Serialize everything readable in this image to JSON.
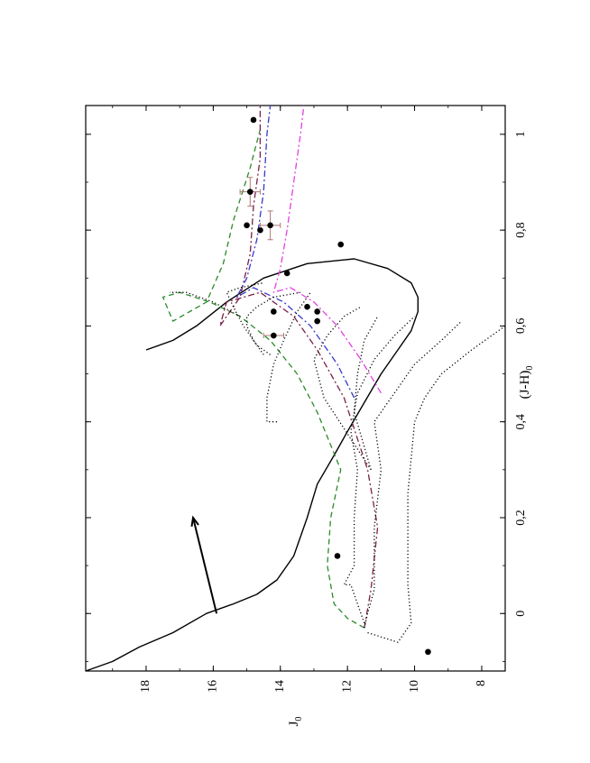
{
  "chart_data": {
    "type": "scatter",
    "orientation": "rotated-90-ccw",
    "xlabel": "(J-H)",
    "xlabel_sub": "0",
    "ylabel": "J",
    "ylabel_sub": "0",
    "xlim": [
      -0.12,
      1.06
    ],
    "ylim": [
      19.8,
      7.3
    ],
    "x_ticks": [
      0,
      0.2,
      0.4,
      0.6,
      0.8,
      1
    ],
    "x_tick_labels": [
      "0",
      "0,2",
      "0,4",
      "0,6",
      "0,8",
      "1"
    ],
    "y_ticks": [
      8,
      10,
      12,
      14,
      16,
      18
    ],
    "y_tick_labels": [
      "8",
      "10",
      "12",
      "14",
      "16",
      "18"
    ],
    "grid": false,
    "points": [
      {
        "x": -0.08,
        "y": 9.6
      },
      {
        "x": 0.12,
        "y": 12.3
      },
      {
        "x": 0.61,
        "y": 12.9
      },
      {
        "x": 0.63,
        "y": 12.9
      },
      {
        "x": 0.64,
        "y": 13.2
      },
      {
        "x": 0.71,
        "y": 13.8
      },
      {
        "x": 0.77,
        "y": 12.2
      },
      {
        "x": 0.58,
        "y": 14.2,
        "xerr": 0.0,
        "yerr": 0.3
      },
      {
        "x": 0.63,
        "y": 14.2
      },
      {
        "x": 0.8,
        "y": 14.6
      },
      {
        "x": 0.81,
        "y": 14.3,
        "xerr": 0.03,
        "yerr": 0.3
      },
      {
        "x": 0.81,
        "y": 15.0
      },
      {
        "x": 0.88,
        "y": 14.9,
        "xerr": 0.03,
        "yerr": 0.3
      },
      {
        "x": 1.03,
        "y": 14.8
      }
    ],
    "point_color": "#000000",
    "errorbar_color": "#b07878",
    "series": [
      {
        "style": "solid",
        "color": "#000000",
        "x": [
          -0.12,
          -0.1,
          -0.07,
          -0.04,
          0.0,
          0.02,
          0.04,
          0.07,
          0.12,
          0.2,
          0.27,
          0.33,
          0.38,
          0.44,
          0.5,
          0.55,
          0.59,
          0.63,
          0.66,
          0.69,
          0.72,
          0.74,
          0.73,
          0.7,
          0.65,
          0.6,
          0.57,
          0.55
        ],
        "y": [
          19.8,
          19.0,
          18.2,
          17.2,
          16.2,
          15.4,
          14.7,
          14.1,
          13.6,
          13.2,
          12.9,
          12.4,
          12.0,
          11.5,
          11.0,
          10.5,
          10.1,
          9.9,
          9.9,
          10.1,
          10.8,
          11.8,
          13.2,
          14.5,
          15.6,
          16.5,
          17.2,
          18.0
        ]
      },
      {
        "style": "dashed",
        "color": "#2a8a2a",
        "x": [
          -0.03,
          -0.01,
          0.02,
          0.1,
          0.2,
          0.3,
          0.42,
          0.5,
          0.57,
          0.62,
          0.65,
          0.67,
          0.66,
          0.61,
          0.65,
          0.73,
          0.82,
          0.93,
          1.01
        ],
        "y": [
          11.5,
          12.0,
          12.4,
          12.6,
          12.5,
          12.2,
          12.9,
          13.5,
          14.3,
          15.2,
          16.1,
          17.0,
          17.5,
          17.2,
          16.2,
          15.7,
          15.4,
          14.9,
          14.6
        ]
      },
      {
        "style": "dashdot",
        "color": "#7a1f4a",
        "x": [
          -0.03,
          0.05,
          0.18,
          0.3,
          0.45,
          0.55,
          0.62,
          0.67,
          0.65,
          0.6,
          0.66,
          0.75,
          0.85,
          0.95,
          1.06
        ],
        "y": [
          11.5,
          11.3,
          11.1,
          11.4,
          12.1,
          12.9,
          13.6,
          14.6,
          15.6,
          15.8,
          15.2,
          14.9,
          14.8,
          14.6,
          14.6
        ]
      },
      {
        "style": "dashdot",
        "color": "#3838c8",
        "x": [
          0.45,
          0.52,
          0.6,
          0.65,
          0.68,
          0.66,
          0.7,
          0.78,
          0.88,
          1.0,
          1.06
        ],
        "y": [
          11.8,
          12.3,
          13.1,
          13.9,
          14.8,
          15.3,
          15.0,
          14.7,
          14.5,
          14.4,
          14.3
        ]
      },
      {
        "style": "dashdot",
        "color": "#e040e0",
        "x": [
          0.46,
          0.53,
          0.6,
          0.65,
          0.68,
          0.67,
          0.72,
          0.8,
          0.9,
          1.0,
          1.06
        ],
        "y": [
          11.0,
          11.6,
          12.3,
          13.0,
          13.7,
          14.2,
          14.0,
          13.8,
          13.6,
          13.4,
          13.3
        ]
      },
      {
        "style": "dotted",
        "color": "#000000",
        "x": [
          -0.04,
          -0.06,
          -0.02,
          0.06,
          0.25,
          0.4,
          0.45,
          0.5,
          0.55,
          0.6
        ],
        "y": [
          11.4,
          10.5,
          10.1,
          10.2,
          10.2,
          10.0,
          9.7,
          9.2,
          8.3,
          7.3
        ]
      },
      {
        "style": "dotted",
        "color": "#000000",
        "x": [
          -0.03,
          0.0,
          0.05,
          0.18,
          0.3,
          0.4,
          0.46,
          0.52,
          0.57,
          0.61
        ],
        "y": [
          11.5,
          11.4,
          11.2,
          11.2,
          11.0,
          11.2,
          10.6,
          10.0,
          9.2,
          8.6
        ]
      },
      {
        "style": "dotted",
        "color": "#000000",
        "x": [
          -0.02,
          0.04,
          0.06,
          0.06,
          0.1,
          0.2,
          0.3,
          0.38,
          0.46,
          0.53,
          0.58,
          0.62
        ],
        "y": [
          11.5,
          11.8,
          11.9,
          12.1,
          11.8,
          11.8,
          11.7,
          11.9,
          11.7,
          11.2,
          10.6,
          10.0
        ]
      },
      {
        "style": "dotted",
        "color": "#000000",
        "x": [
          0.3,
          0.42,
          0.5,
          0.57,
          0.62
        ],
        "y": [
          11.3,
          11.8,
          11.7,
          11.5,
          11.1
        ]
      },
      {
        "style": "dotted",
        "color": "#000000",
        "x": [
          0.3,
          0.45,
          0.53,
          0.58,
          0.62,
          0.64
        ],
        "y": [
          11.3,
          12.7,
          13.0,
          12.6,
          12.1,
          11.6
        ]
      },
      {
        "style": "dotted",
        "color": "#000000",
        "x": [
          0.4,
          0.4,
          0.45,
          0.52,
          0.57,
          0.63,
          0.67
        ],
        "y": [
          14.1,
          14.4,
          14.4,
          14.2,
          13.9,
          13.5,
          13.1
        ]
      },
      {
        "style": "dotted",
        "color": "#000000",
        "x": [
          0.54,
          0.57,
          0.6,
          0.62,
          0.64,
          0.66,
          0.67
        ],
        "y": [
          14.5,
          14.8,
          15.0,
          15.0,
          14.7,
          14.2,
          13.4
        ]
      },
      {
        "style": "dotted",
        "color": "#000000",
        "x": [
          0.54,
          0.56,
          0.6,
          0.64,
          0.67,
          0.68,
          0.69
        ],
        "y": [
          14.3,
          14.7,
          15.1,
          15.4,
          15.6,
          15.2,
          14.5
        ]
      },
      {
        "style": "dotted",
        "color": "#000000",
        "x": [
          0.62,
          0.65,
          0.67,
          0.67
        ],
        "y": [
          15.2,
          16.0,
          16.8,
          17.3
        ]
      }
    ],
    "arrow": {
      "x0": 0.0,
      "y0": 15.9,
      "x1": 0.2,
      "y1": 16.6,
      "color": "#000000"
    }
  }
}
